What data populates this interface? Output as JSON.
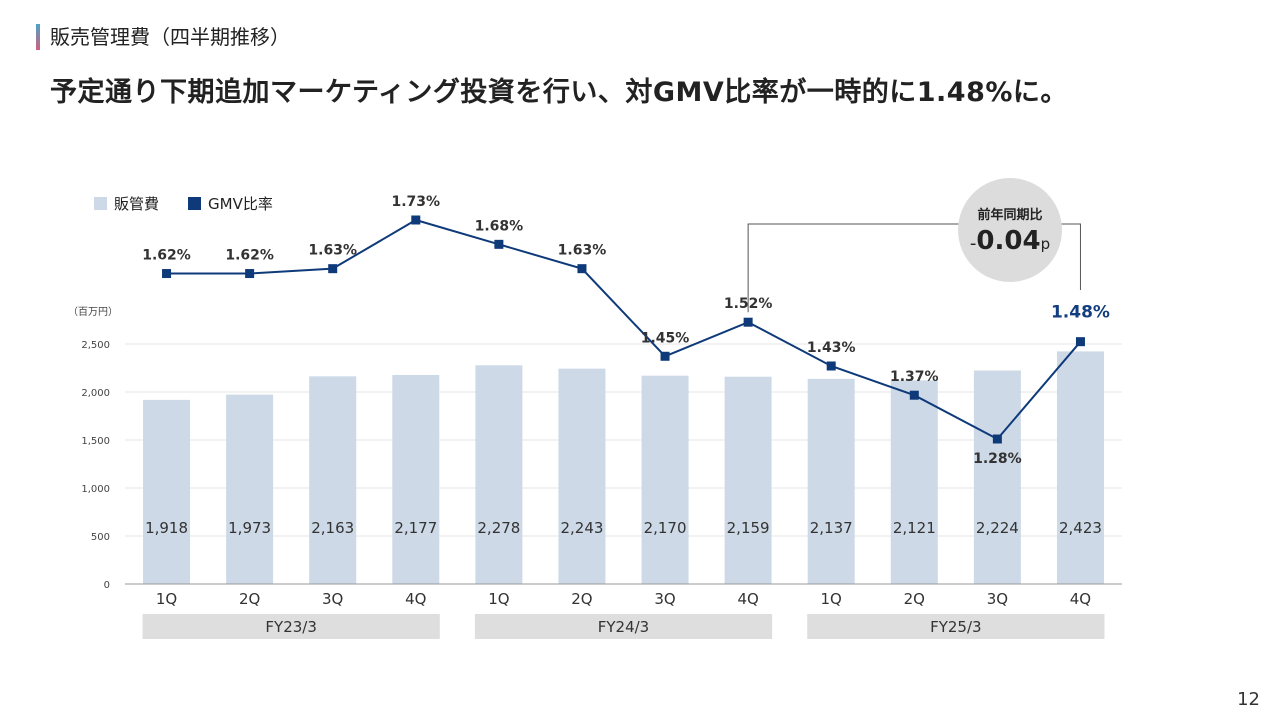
{
  "page": {
    "section_title": "販売管理費（四半期推移）",
    "headline": "予定通り下期追加マーケティング投資を行い、対GMV比率が一時的に1.48%に。",
    "page_number": "12"
  },
  "chart_data": {
    "type": "bar",
    "categories": [
      "1Q",
      "2Q",
      "3Q",
      "4Q",
      "1Q",
      "2Q",
      "3Q",
      "4Q",
      "1Q",
      "2Q",
      "3Q",
      "4Q"
    ],
    "groups": [
      {
        "label": "FY23/3",
        "from": 0,
        "to": 3
      },
      {
        "label": "FY24/3",
        "from": 4,
        "to": 7
      },
      {
        "label": "FY25/3",
        "from": 8,
        "to": 11
      }
    ],
    "series": [
      {
        "name": "販管費",
        "type": "bar",
        "values": [
          1918,
          1973,
          2163,
          2177,
          2278,
          2243,
          2170,
          2159,
          2137,
          2121,
          2224,
          2423
        ],
        "labels": [
          "1,918",
          "1,973",
          "2,163",
          "2,177",
          "2,278",
          "2,243",
          "2,170",
          "2,159",
          "2,137",
          "2,121",
          "2,224",
          "2,423"
        ]
      },
      {
        "name": "GMV比率",
        "type": "line",
        "values": [
          1.62,
          1.62,
          1.63,
          1.73,
          1.68,
          1.63,
          1.45,
          1.52,
          1.43,
          1.37,
          1.28,
          1.48
        ],
        "labels": [
          "1.62%",
          "1.62%",
          "1.63%",
          "1.73%",
          "1.68%",
          "1.63%",
          "1.45%",
          "1.52%",
          "1.43%",
          "1.37%",
          "1.28%",
          "1.48%"
        ]
      }
    ],
    "y_unit": "（百万円）",
    "y_ticks": [
      "0",
      "500",
      "1,000",
      "1,500",
      "2,000",
      "2,500"
    ],
    "y_tick_values": [
      0,
      500,
      1000,
      1500,
      2000,
      2500
    ],
    "ylim": [
      0,
      2500
    ],
    "ratio_range": [
      1.28,
      1.73
    ],
    "annotation": {
      "label": "前年同期比",
      "sign": "-",
      "value": "0.04",
      "unit": "p"
    },
    "colors": {
      "bar": "#cdd9e6",
      "line": "#0e3a7a",
      "group_band": "#dedede",
      "highlight": "#123e80",
      "badge": "#dcdcdc",
      "grid": "#e6e6e6"
    },
    "grid": true,
    "legend": "top-left"
  }
}
